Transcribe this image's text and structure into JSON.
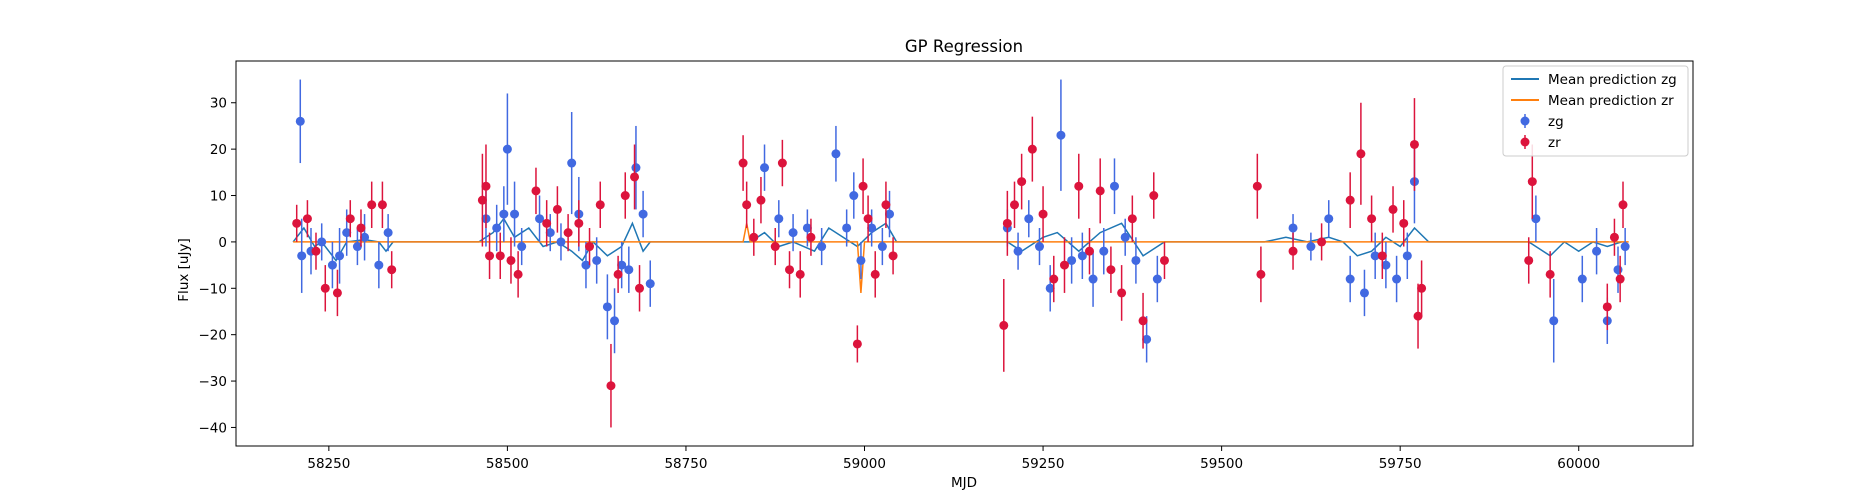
{
  "chart_data": {
    "type": "scatter",
    "title": "GP Regression",
    "xlabel": "MJD",
    "ylabel": "Flux [uJy]",
    "xlim": [
      58120,
      60160
    ],
    "ylim": [
      -44,
      39
    ],
    "xticks": [
      58250,
      58500,
      58750,
      59000,
      59250,
      59500,
      59750,
      60000
    ],
    "yticks": [
      -40,
      -30,
      -20,
      -10,
      0,
      10,
      20,
      30
    ],
    "grid": false,
    "legend": {
      "placement": "top-right",
      "entries": [
        {
          "label": "Mean prediction zg",
          "kind": "line",
          "color": "#1f77b4"
        },
        {
          "label": "Mean prediction zr",
          "kind": "line",
          "color": "#ff7f0e"
        },
        {
          "label": "zg",
          "kind": "errorbar",
          "color": "#4169e1"
        },
        {
          "label": "zr",
          "kind": "errorbar",
          "color": "#dc143c"
        }
      ]
    },
    "lines": [
      {
        "name": "Mean prediction zg",
        "color": "#1f77b4",
        "points": [
          [
            58200,
            0
          ],
          [
            58215,
            3
          ],
          [
            58230,
            -1
          ],
          [
            58240,
            0
          ],
          [
            58260,
            -4
          ],
          [
            58275,
            0
          ],
          [
            58300,
            0.5
          ],
          [
            58320,
            0
          ],
          [
            58330,
            -2
          ],
          [
            58340,
            0
          ],
          [
            58460,
            0
          ],
          [
            58480,
            2
          ],
          [
            58495,
            5
          ],
          [
            58510,
            1
          ],
          [
            58530,
            3
          ],
          [
            58550,
            -1
          ],
          [
            58570,
            0
          ],
          [
            58590,
            -2
          ],
          [
            58605,
            -4
          ],
          [
            58620,
            0
          ],
          [
            58640,
            -3
          ],
          [
            58660,
            -1
          ],
          [
            58675,
            4
          ],
          [
            58690,
            -2
          ],
          [
            58700,
            0
          ],
          [
            58840,
            0
          ],
          [
            58860,
            2
          ],
          [
            58880,
            -1
          ],
          [
            58900,
            0
          ],
          [
            58930,
            -2
          ],
          [
            58950,
            3
          ],
          [
            58970,
            1
          ],
          [
            58990,
            -1
          ],
          [
            59010,
            2
          ],
          [
            59030,
            4
          ],
          [
            59045,
            0
          ],
          [
            59200,
            0
          ],
          [
            59220,
            -2
          ],
          [
            59250,
            1
          ],
          [
            59270,
            2
          ],
          [
            59300,
            -2
          ],
          [
            59330,
            2
          ],
          [
            59360,
            4
          ],
          [
            59390,
            -3
          ],
          [
            59420,
            0
          ],
          [
            59560,
            0
          ],
          [
            59590,
            1
          ],
          [
            59620,
            0
          ],
          [
            59650,
            1
          ],
          [
            59670,
            0
          ],
          [
            59690,
            -3
          ],
          [
            59710,
            -2
          ],
          [
            59730,
            1
          ],
          [
            59750,
            -1
          ],
          [
            59770,
            3
          ],
          [
            59790,
            0
          ],
          [
            59930,
            0
          ],
          [
            59960,
            -3
          ],
          [
            59980,
            0
          ],
          [
            60000,
            -2
          ],
          [
            60020,
            0
          ],
          [
            60040,
            -1
          ],
          [
            60060,
            0
          ]
        ]
      },
      {
        "name": "Mean prediction zr",
        "color": "#ff7f0e",
        "points": [
          [
            58200,
            0
          ],
          [
            58340,
            0
          ],
          [
            58460,
            0
          ],
          [
            58700,
            0
          ],
          [
            58830,
            0
          ],
          [
            58835,
            4
          ],
          [
            58840,
            0
          ],
          [
            58990,
            0
          ],
          [
            58995,
            -11
          ],
          [
            59000,
            0
          ],
          [
            59060,
            0
          ],
          [
            59200,
            0
          ],
          [
            59430,
            0
          ],
          [
            59540,
            0
          ],
          [
            59800,
            0
          ],
          [
            59930,
            0
          ],
          [
            60070,
            0
          ]
        ]
      }
    ],
    "series": [
      {
        "name": "zg",
        "color": "#4169e1",
        "points": [
          [
            58210,
            26,
            9
          ],
          [
            58212,
            -3,
            8
          ],
          [
            58225,
            -2,
            5
          ],
          [
            58240,
            0,
            4
          ],
          [
            58255,
            -5,
            5
          ],
          [
            58265,
            -3,
            6
          ],
          [
            58275,
            2,
            5
          ],
          [
            58290,
            -1,
            4
          ],
          [
            58300,
            1,
            5
          ],
          [
            58320,
            -5,
            5
          ],
          [
            58333,
            2,
            4
          ],
          [
            58470,
            5,
            6
          ],
          [
            58485,
            3,
            5
          ],
          [
            58495,
            6,
            6
          ],
          [
            58500,
            20,
            12
          ],
          [
            58510,
            6,
            7
          ],
          [
            58520,
            -1,
            4
          ],
          [
            58545,
            5,
            5
          ],
          [
            58560,
            2,
            4
          ],
          [
            58575,
            0,
            4
          ],
          [
            58590,
            17,
            11
          ],
          [
            58600,
            6,
            8
          ],
          [
            58610,
            -5,
            5
          ],
          [
            58625,
            -4,
            5
          ],
          [
            58640,
            -14,
            7
          ],
          [
            58650,
            -17,
            7
          ],
          [
            58660,
            -5,
            5
          ],
          [
            58670,
            -6,
            5
          ],
          [
            58680,
            16,
            9
          ],
          [
            58690,
            6,
            5
          ],
          [
            58700,
            -9,
            5
          ],
          [
            58860,
            16,
            5
          ],
          [
            58880,
            5,
            4
          ],
          [
            58900,
            2,
            4
          ],
          [
            58920,
            3,
            4
          ],
          [
            58940,
            -1,
            4
          ],
          [
            58960,
            19,
            6
          ],
          [
            58975,
            3,
            4
          ],
          [
            58985,
            10,
            5
          ],
          [
            58995,
            -4,
            4
          ],
          [
            59010,
            3,
            4
          ],
          [
            59025,
            -1,
            4
          ],
          [
            59035,
            6,
            5
          ],
          [
            59200,
            3,
            4
          ],
          [
            59215,
            -2,
            4
          ],
          [
            59230,
            5,
            4
          ],
          [
            59245,
            -1,
            4
          ],
          [
            59260,
            -10,
            5
          ],
          [
            59275,
            23,
            12
          ],
          [
            59290,
            -4,
            5
          ],
          [
            59305,
            -3,
            5
          ],
          [
            59320,
            -8,
            6
          ],
          [
            59335,
            -2,
            5
          ],
          [
            59350,
            12,
            6
          ],
          [
            59365,
            1,
            4
          ],
          [
            59380,
            -4,
            5
          ],
          [
            59395,
            -21,
            5
          ],
          [
            59410,
            -8,
            5
          ],
          [
            59600,
            3,
            3
          ],
          [
            59625,
            -1,
            3
          ],
          [
            59650,
            5,
            4
          ],
          [
            59680,
            -8,
            5
          ],
          [
            59700,
            -11,
            5
          ],
          [
            59715,
            -3,
            5
          ],
          [
            59730,
            -5,
            5
          ],
          [
            59745,
            -8,
            5
          ],
          [
            59760,
            -3,
            5
          ],
          [
            59770,
            13,
            9
          ],
          [
            59940,
            5,
            5
          ],
          [
            59965,
            -17,
            9
          ],
          [
            60005,
            -8,
            5
          ],
          [
            60025,
            -2,
            5
          ],
          [
            60040,
            -17,
            5
          ],
          [
            60055,
            -6,
            5
          ],
          [
            60065,
            -1,
            4
          ]
        ]
      },
      {
        "name": "zr",
        "color": "#dc143c",
        "points": [
          [
            58205,
            4,
            4
          ],
          [
            58220,
            5,
            4
          ],
          [
            58232,
            -2,
            4
          ],
          [
            58245,
            -10,
            5
          ],
          [
            58262,
            -11,
            5
          ],
          [
            58280,
            5,
            4
          ],
          [
            58295,
            3,
            4
          ],
          [
            58310,
            8,
            5
          ],
          [
            58325,
            8,
            5
          ],
          [
            58338,
            -6,
            4
          ],
          [
            58465,
            9,
            10
          ],
          [
            58470,
            12,
            9
          ],
          [
            58475,
            -3,
            5
          ],
          [
            58490,
            -3,
            5
          ],
          [
            58505,
            -4,
            5
          ],
          [
            58515,
            -7,
            5
          ],
          [
            58540,
            11,
            5
          ],
          [
            58555,
            4,
            5
          ],
          [
            58570,
            7,
            5
          ],
          [
            58585,
            2,
            4
          ],
          [
            58600,
            4,
            5
          ],
          [
            58615,
            -1,
            4
          ],
          [
            58630,
            8,
            5
          ],
          [
            58645,
            -31,
            9
          ],
          [
            58655,
            -7,
            4
          ],
          [
            58665,
            10,
            5
          ],
          [
            58678,
            14,
            7
          ],
          [
            58685,
            -10,
            5
          ],
          [
            58830,
            17,
            6
          ],
          [
            58835,
            8,
            5
          ],
          [
            58845,
            1,
            4
          ],
          [
            58855,
            9,
            5
          ],
          [
            58875,
            -1,
            4
          ],
          [
            58885,
            17,
            5
          ],
          [
            58895,
            -6,
            4
          ],
          [
            58910,
            -7,
            5
          ],
          [
            58925,
            1,
            4
          ],
          [
            58990,
            -22,
            4
          ],
          [
            58998,
            12,
            6
          ],
          [
            59005,
            5,
            5
          ],
          [
            59015,
            -7,
            5
          ],
          [
            59030,
            8,
            5
          ],
          [
            59040,
            -3,
            4
          ],
          [
            59195,
            -18,
            10
          ],
          [
            59200,
            4,
            7
          ],
          [
            59210,
            8,
            5
          ],
          [
            59220,
            13,
            6
          ],
          [
            59235,
            20,
            7
          ],
          [
            59250,
            6,
            6
          ],
          [
            59265,
            -8,
            5
          ],
          [
            59280,
            -5,
            6
          ],
          [
            59300,
            12,
            7
          ],
          [
            59315,
            -2,
            5
          ],
          [
            59330,
            11,
            7
          ],
          [
            59345,
            -6,
            5
          ],
          [
            59360,
            -11,
            6
          ],
          [
            59375,
            5,
            5
          ],
          [
            59390,
            -17,
            6
          ],
          [
            59405,
            10,
            5
          ],
          [
            59420,
            -4,
            4
          ],
          [
            59550,
            12,
            7
          ],
          [
            59555,
            -7,
            6
          ],
          [
            59600,
            -2,
            4
          ],
          [
            59640,
            0,
            4
          ],
          [
            59680,
            9,
            6
          ],
          [
            59695,
            19,
            11
          ],
          [
            59710,
            5,
            5
          ],
          [
            59725,
            -3,
            5
          ],
          [
            59740,
            7,
            5
          ],
          [
            59755,
            4,
            5
          ],
          [
            59770,
            21,
            10
          ],
          [
            59775,
            -16,
            7
          ],
          [
            59780,
            -10,
            6
          ],
          [
            59930,
            -4,
            5
          ],
          [
            59935,
            13,
            8
          ],
          [
            59960,
            -7,
            5
          ],
          [
            60040,
            -14,
            5
          ],
          [
            60050,
            1,
            4
          ],
          [
            60058,
            -8,
            5
          ],
          [
            60062,
            8,
            5
          ]
        ]
      }
    ]
  }
}
